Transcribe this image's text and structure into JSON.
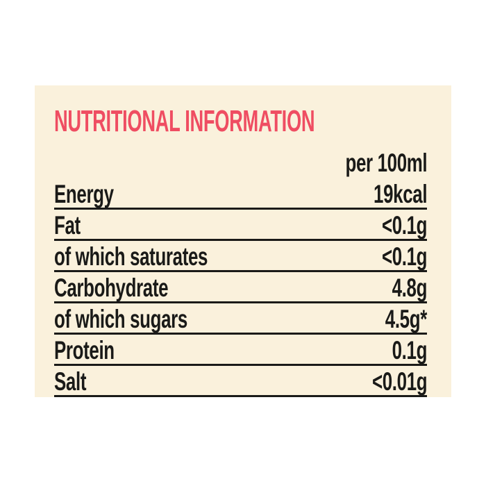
{
  "panel": {
    "title": "NUTRITIONAL INFORMATION",
    "column_header": "per 100ml",
    "rows": [
      {
        "label": "Energy",
        "value": "19kcal"
      },
      {
        "label": "Fat",
        "value": "<0.1g"
      },
      {
        "label": "of which saturates",
        "value": "<0.1g"
      },
      {
        "label": "Carbohydrate",
        "value": "4.8g"
      },
      {
        "label": "of which sugars",
        "value": "4.5g*"
      },
      {
        "label": "Protein",
        "value": "0.1g"
      },
      {
        "label": "Salt",
        "value": "<0.01g"
      }
    ],
    "colors": {
      "panel_background": "#faf1dc",
      "title": "#ef4d62",
      "text": "#1a1a18",
      "rule": "#1a1a18",
      "page_background": "#ffffff"
    }
  }
}
